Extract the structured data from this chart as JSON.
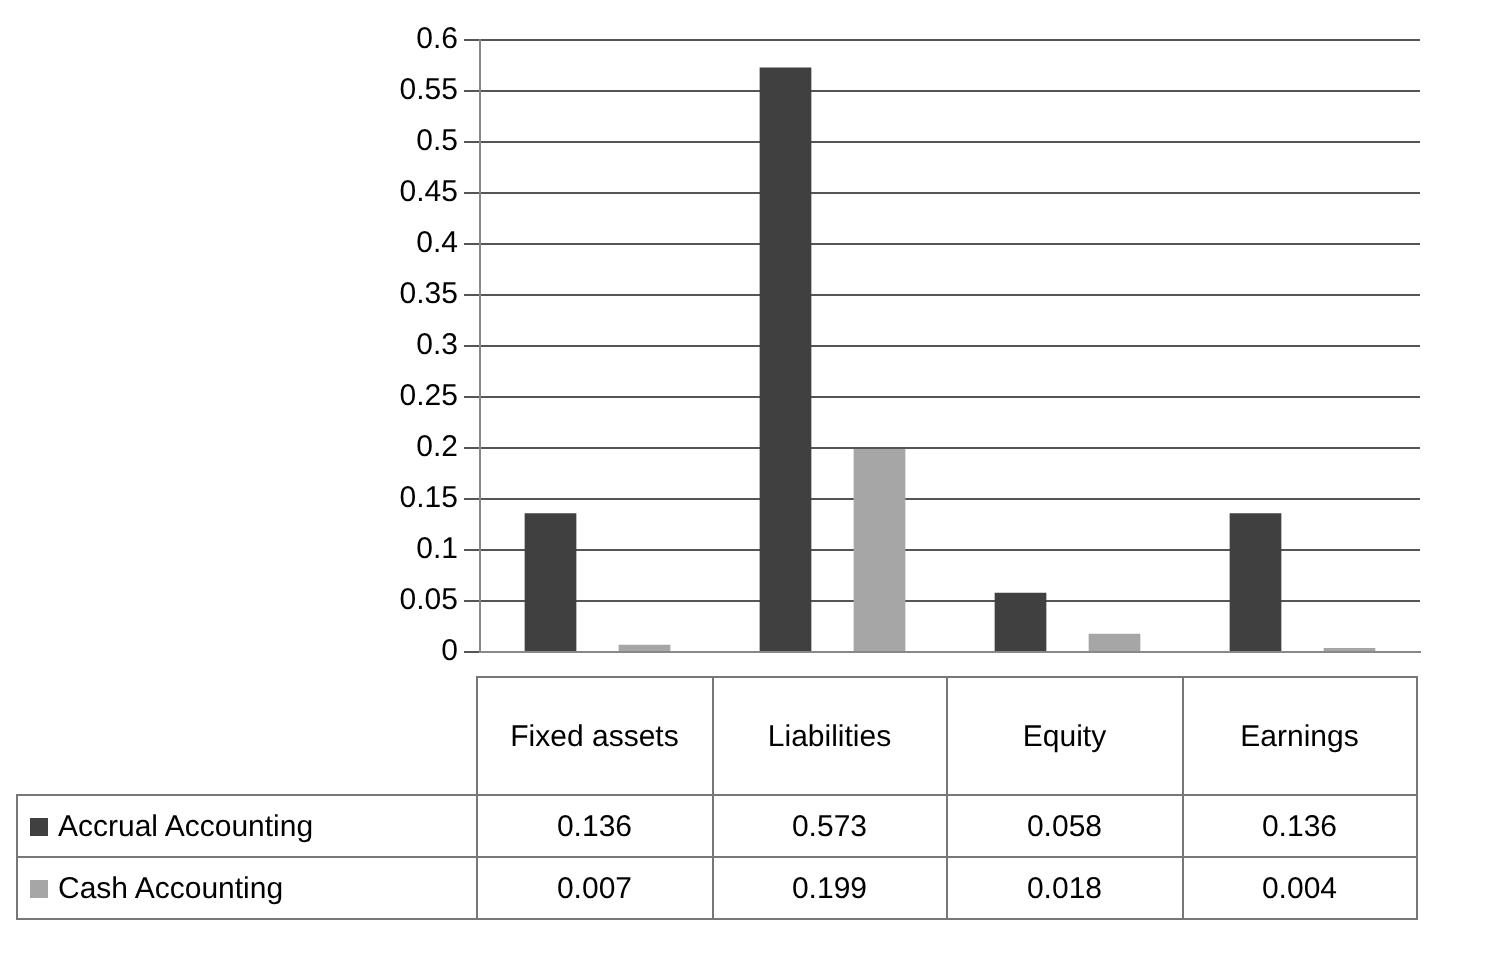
{
  "chart_data": {
    "type": "bar",
    "categories": [
      "Fixed assets",
      "Liabilities",
      "Equity",
      "Earnings"
    ],
    "series": [
      {
        "name": "Accrual Accounting",
        "color": "#404040",
        "values": [
          0.136,
          0.573,
          0.058,
          0.136
        ]
      },
      {
        "name": "Cash Accounting",
        "color": "#a6a6a6",
        "values": [
          0.007,
          0.199,
          0.018,
          0.004
        ]
      }
    ],
    "ylim": [
      0,
      0.6
    ],
    "yticks": [
      0,
      0.05,
      0.1,
      0.15,
      0.2,
      0.25,
      0.3,
      0.35,
      0.4,
      0.45,
      0.5,
      0.55,
      0.6
    ],
    "grid": "y",
    "legend": "bottom",
    "data_labels": true
  }
}
